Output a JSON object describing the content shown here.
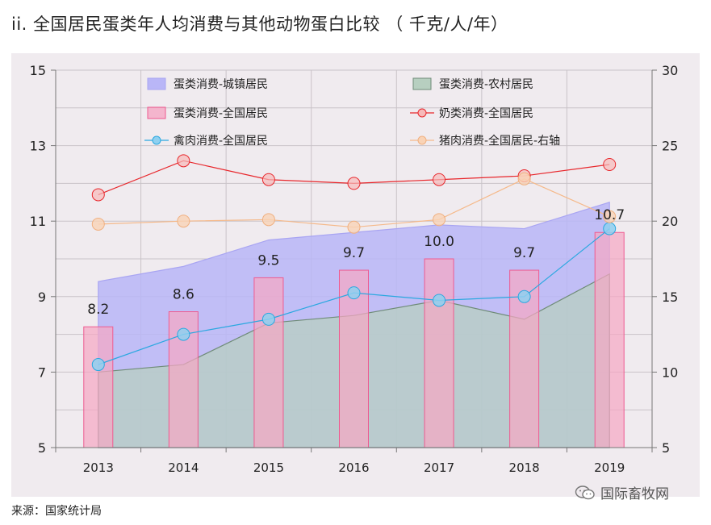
{
  "title": "ii. 全国居民蛋类年人均消费与其他动物蛋白比较 （ 千克/人/年）",
  "footer": "来源：国家统计局",
  "watermark": "国际畜牧网",
  "chart_data": {
    "type": "bar",
    "categories": [
      "2013",
      "2014",
      "2015",
      "2016",
      "2017",
      "2018",
      "2019"
    ],
    "ylim": [
      5,
      15
    ],
    "y2lim": [
      5,
      30
    ],
    "yticks": [
      "5",
      "7",
      "9",
      "11",
      "13",
      "15"
    ],
    "y2ticks": [
      "5",
      "10",
      "15",
      "20",
      "25",
      "30"
    ],
    "series": [
      {
        "name": "蛋类消费-城镇居民",
        "kind": "area",
        "axis": "left",
        "color": "#b9b6f7",
        "values": [
          9.4,
          9.8,
          10.5,
          10.7,
          10.9,
          10.8,
          11.5
        ]
      },
      {
        "name": "蛋类消费-农村居民",
        "kind": "area",
        "axis": "left",
        "color": "#b7cfc0",
        "values": [
          7.0,
          7.2,
          8.3,
          8.5,
          8.9,
          8.4,
          9.6
        ]
      },
      {
        "name": "蛋类消费-全国居民",
        "kind": "bar",
        "axis": "left",
        "color": "#f5a8c4",
        "values": [
          8.2,
          8.6,
          9.5,
          9.7,
          10.0,
          9.7,
          10.7
        ]
      },
      {
        "name": "奶类消费-全国居民",
        "kind": "line",
        "axis": "left",
        "color": "#e8262b",
        "values": [
          11.7,
          12.6,
          12.1,
          12.0,
          12.1,
          12.2,
          12.5
        ]
      },
      {
        "name": "禽肉消费-全国居民",
        "kind": "line",
        "axis": "left",
        "color": "#2aa8e0",
        "values": [
          7.2,
          8.0,
          8.4,
          9.1,
          8.9,
          9.0,
          10.8
        ]
      },
      {
        "name": "猪肉消费-全国居民-右轴",
        "kind": "line",
        "axis": "right",
        "color": "#f5b98a",
        "values": [
          19.8,
          20.0,
          20.1,
          19.6,
          20.1,
          22.8,
          20.3
        ]
      }
    ],
    "data_labels": [
      "8.2",
      "8.6",
      "9.5",
      "9.7",
      "10.0",
      "9.7",
      "10.7"
    ],
    "legend_position": "top"
  }
}
